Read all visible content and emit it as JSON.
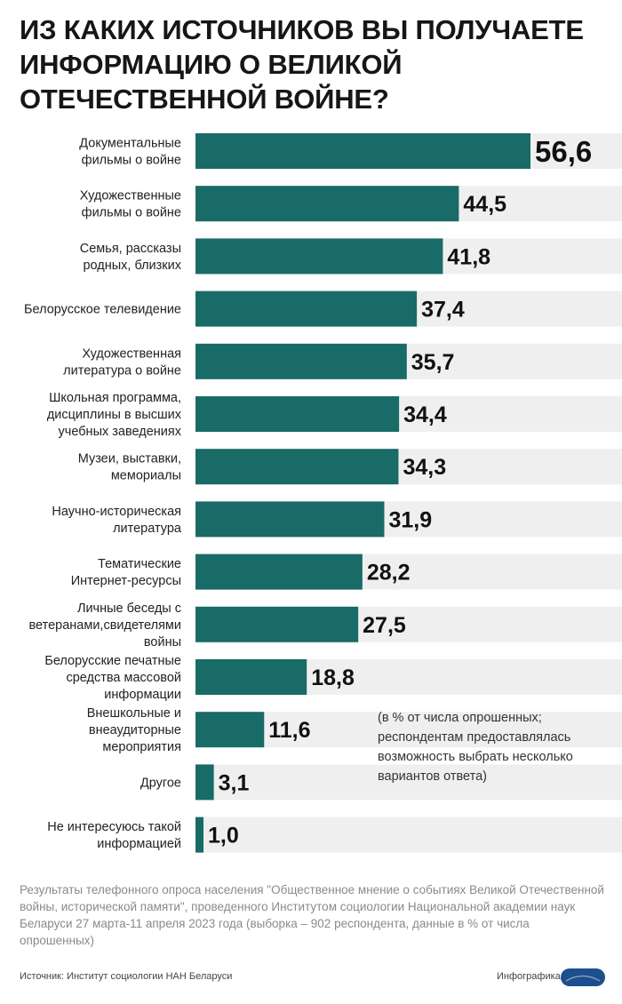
{
  "header": {
    "title": "ИЗ КАКИХ ИСТОЧНИКОВ ВЫ ПОЛУЧАЕТЕ ИНФОРМАЦИЮ О ВЕЛИКОЙ ОТЕЧЕСТВЕННОЙ ВОЙНЕ?"
  },
  "chart_data": {
    "type": "bar",
    "orientation": "horizontal",
    "title": "ИЗ КАКИХ ИСТОЧНИКОВ ВЫ ПОЛУЧАЕТЕ ИНФОРМАЦИЮ О ВЕЛИКОЙ ОТЕЧЕСТВЕННОЙ ВОЙНЕ?",
    "categories": [
      [
        "Документальные",
        "фильмы о войне"
      ],
      [
        "Художественные",
        "фильмы о войне"
      ],
      [
        "Семья, рассказы",
        "родных, близких"
      ],
      [
        "Белорусское телевидение"
      ],
      [
        "Художественная",
        "литература о войне"
      ],
      [
        "Школьная программа,",
        "дисциплины в высших",
        "учебных заведениях"
      ],
      [
        "Музеи, выставки,",
        "мемориалы"
      ],
      [
        "Научно-историческая",
        "литература"
      ],
      [
        "Тематические",
        "Интернет-ресурсы"
      ],
      [
        "Личные беседы с",
        "ветеранами,свидетелями",
        "войны"
      ],
      [
        "Белорусские печатные",
        "средства массовой",
        "информации"
      ],
      [
        "Внешкольные и",
        "внеаудиторные",
        "мероприятия"
      ],
      [
        "Другое"
      ],
      [
        "Не интересуюсь такой",
        "информацией"
      ]
    ],
    "values": [
      56.6,
      44.5,
      41.8,
      37.4,
      35.7,
      34.4,
      34.3,
      31.9,
      28.2,
      27.5,
      18.8,
      11.6,
      3.1,
      1.0
    ],
    "value_labels": [
      "56,6",
      "44,5",
      "41,8",
      "37,4",
      "35,7",
      "34,4",
      "34,3",
      "31,9",
      "28,2",
      "27,5",
      "18,8",
      "11,6",
      "3,1",
      "1,0"
    ],
    "xlim": [
      0,
      56.6
    ],
    "grid": false,
    "bar_color": "#186b66",
    "stripe_color": "#efefef"
  },
  "note": "(в % от числа опрошенных; респондентам предоставлялась возможность выбрать несколько вариантов ответа)",
  "survey_info": "Результаты телефонного опроса населения \"Общественное мнение о событиях Великой Отечественной войны, исторической памяти\", проведенного Институтом социологии Национальной академии наук Беларуси 27 марта-11 апреля 2023 года (выборка –  902 респондента, данные в % от числа опрошенных)",
  "footer": {
    "source": "Источник: Институт социологии НАН Беларуси",
    "credit": "Инфографика",
    "logo_text": "БЕЛТА"
  }
}
